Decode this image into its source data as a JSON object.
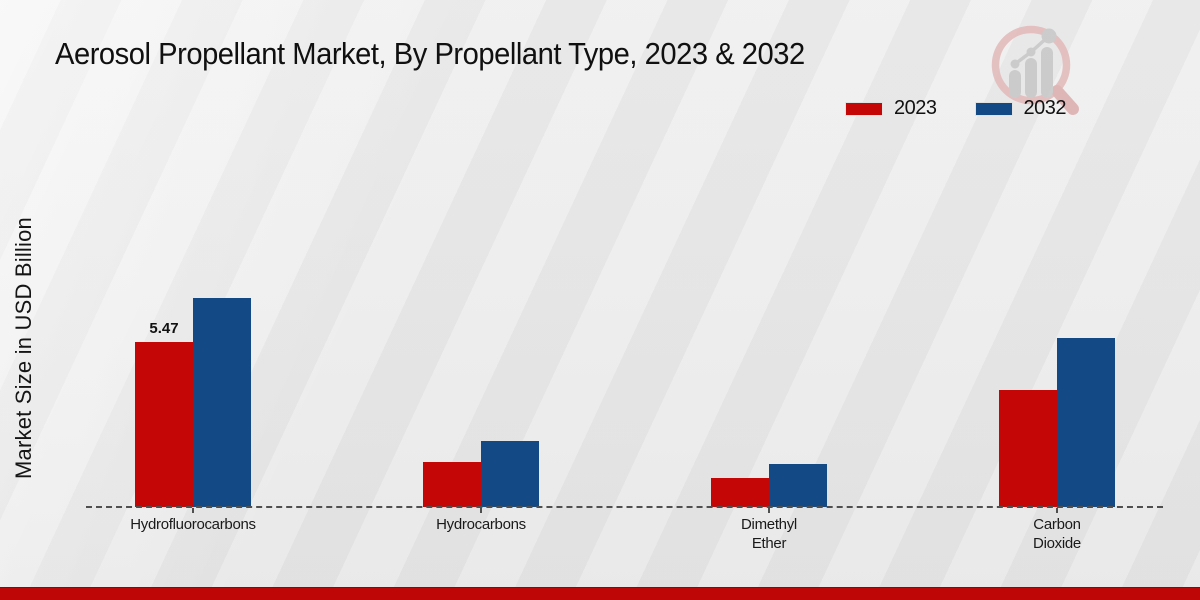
{
  "title": "Aerosol Propellant Market, By Propellant Type, 2023 & 2032",
  "logo_icon": "magnifier-bar-chart-logo",
  "colors": {
    "series_2023": "#c40606",
    "series_2032": "#134a85",
    "footer_bar": "#bf0606",
    "axis": "#4f4f4f",
    "background": "#ebebeb",
    "text": "#111111"
  },
  "chart_data": {
    "type": "bar",
    "title": "Aerosol Propellant Market, By Propellant Type, 2023 & 2032",
    "categories": [
      "Hydrofluorocarbons",
      "Hydrocarbons",
      "Dimethyl\nEther",
      "Carbon\nDioxide"
    ],
    "series": [
      {
        "name": "2023",
        "color": "#c40606",
        "values": [
          5.47,
          1.5,
          0.95,
          3.9
        ],
        "data_labels": [
          "5.47",
          "",
          "",
          ""
        ]
      },
      {
        "name": "2032",
        "color": "#134a85",
        "values": [
          6.95,
          2.2,
          1.43,
          5.6
        ],
        "data_labels": [
          "",
          "",
          "",
          ""
        ]
      }
    ],
    "xlabel": "",
    "ylabel": "Market Size in USD Billion",
    "ylim": [
      0,
      7.5
    ],
    "grid": false,
    "y_axis_ticks_visible": false,
    "baseline_style": "dashed",
    "legend_position": "top-right",
    "annotations": [
      "Only first 2023 bar carries a printed value label (5.47)"
    ]
  }
}
